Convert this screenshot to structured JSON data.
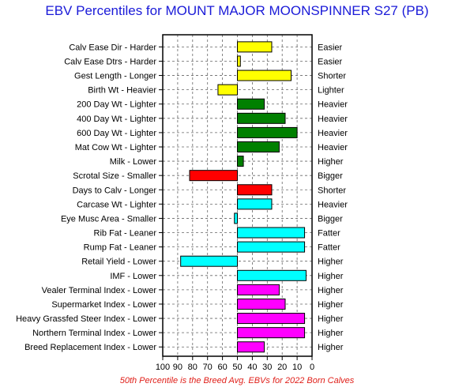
{
  "chart_data": {
    "type": "bar",
    "title": "EBV Percentiles for MOUNT MAJOR MOONSPINNER S27 (PB)",
    "footnote": "50th Percentile is the Breed Avg. EBVs for 2022 Born Calves",
    "xlim": [
      100,
      0
    ],
    "baseline": 50,
    "xticks": [
      "100",
      "90",
      "80",
      "70",
      "60",
      "50",
      "40",
      "30",
      "20",
      "10",
      "0"
    ],
    "grid": true,
    "categories": [
      "Calv Ease Dir - Harder",
      "Calv Ease Dtrs - Harder",
      "Gest Length - Longer",
      "Birth Wt - Heavier",
      "200 Day Wt - Lighter",
      "400 Day Wt - Lighter",
      "600 Day Wt - Lighter",
      "Mat Cow Wt - Lighter",
      "Milk - Lower",
      "Scrotal Size - Smaller",
      "Days to Calv - Longer",
      "Carcase Wt - Lighter",
      "Eye Musc Area - Smaller",
      "Rib Fat - Leaner",
      "Rump Fat - Leaner",
      "Retail Yield - Lower",
      "IMF - Lower",
      "Vealer Terminal Index - Lower",
      "Supermarket Index - Lower",
      "Heavy Grassfed Steer Index - Lower",
      "Northern Terminal Index - Lower",
      "Breed Replacement Index - Lower"
    ],
    "right_labels": [
      "Easier",
      "Easier",
      "Shorter",
      "Lighter",
      "Heavier",
      "Heavier",
      "Heavier",
      "Heavier",
      "Higher",
      "Bigger",
      "Shorter",
      "Heavier",
      "Bigger",
      "Fatter",
      "Fatter",
      "Higher",
      "Higher",
      "Higher",
      "Higher",
      "Higher",
      "Higher",
      "Higher"
    ],
    "values": [
      27,
      48,
      14,
      63,
      32,
      18,
      10,
      22,
      46,
      82,
      27,
      27,
      52,
      5,
      5,
      88,
      4,
      22,
      18,
      5,
      5,
      32
    ],
    "bar_colors": [
      "#ffff00",
      "#ffff00",
      "#ffff00",
      "#ffff00",
      "#008000",
      "#008000",
      "#008000",
      "#008000",
      "#008000",
      "#ff0000",
      "#ff0000",
      "#00ffff",
      "#00ffff",
      "#00ffff",
      "#00ffff",
      "#00ffff",
      "#00ffff",
      "#ff00ff",
      "#ff00ff",
      "#ff00ff",
      "#ff00ff",
      "#ff00ff"
    ]
  }
}
